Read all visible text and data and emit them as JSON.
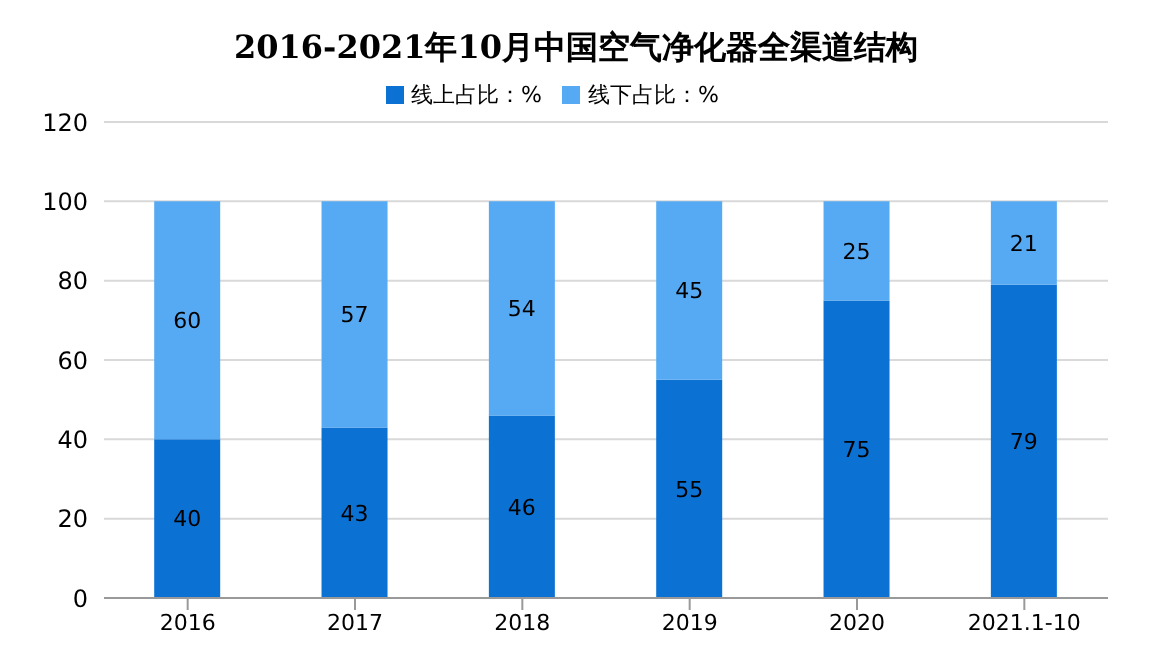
{
  "chart_data": {
    "type": "bar",
    "title": "2016-2021年10月中国空气净化器全渠道结构",
    "stacked": true,
    "categories": [
      "2016",
      "2017",
      "2018",
      "2019",
      "2020",
      "2021.1-10"
    ],
    "series": [
      {
        "name": "线上占比：%",
        "color": "#0b72d4",
        "values": [
          40,
          43,
          46,
          55,
          75,
          79
        ]
      },
      {
        "name": "线下占比：%",
        "color": "#56aaf3",
        "values": [
          60,
          57,
          54,
          45,
          25,
          21
        ]
      }
    ],
    "ylim": [
      0,
      120
    ],
    "yticks": [
      0,
      20,
      40,
      60,
      80,
      100,
      120
    ],
    "grid": "y",
    "legend": "top",
    "data_labels": true
  }
}
